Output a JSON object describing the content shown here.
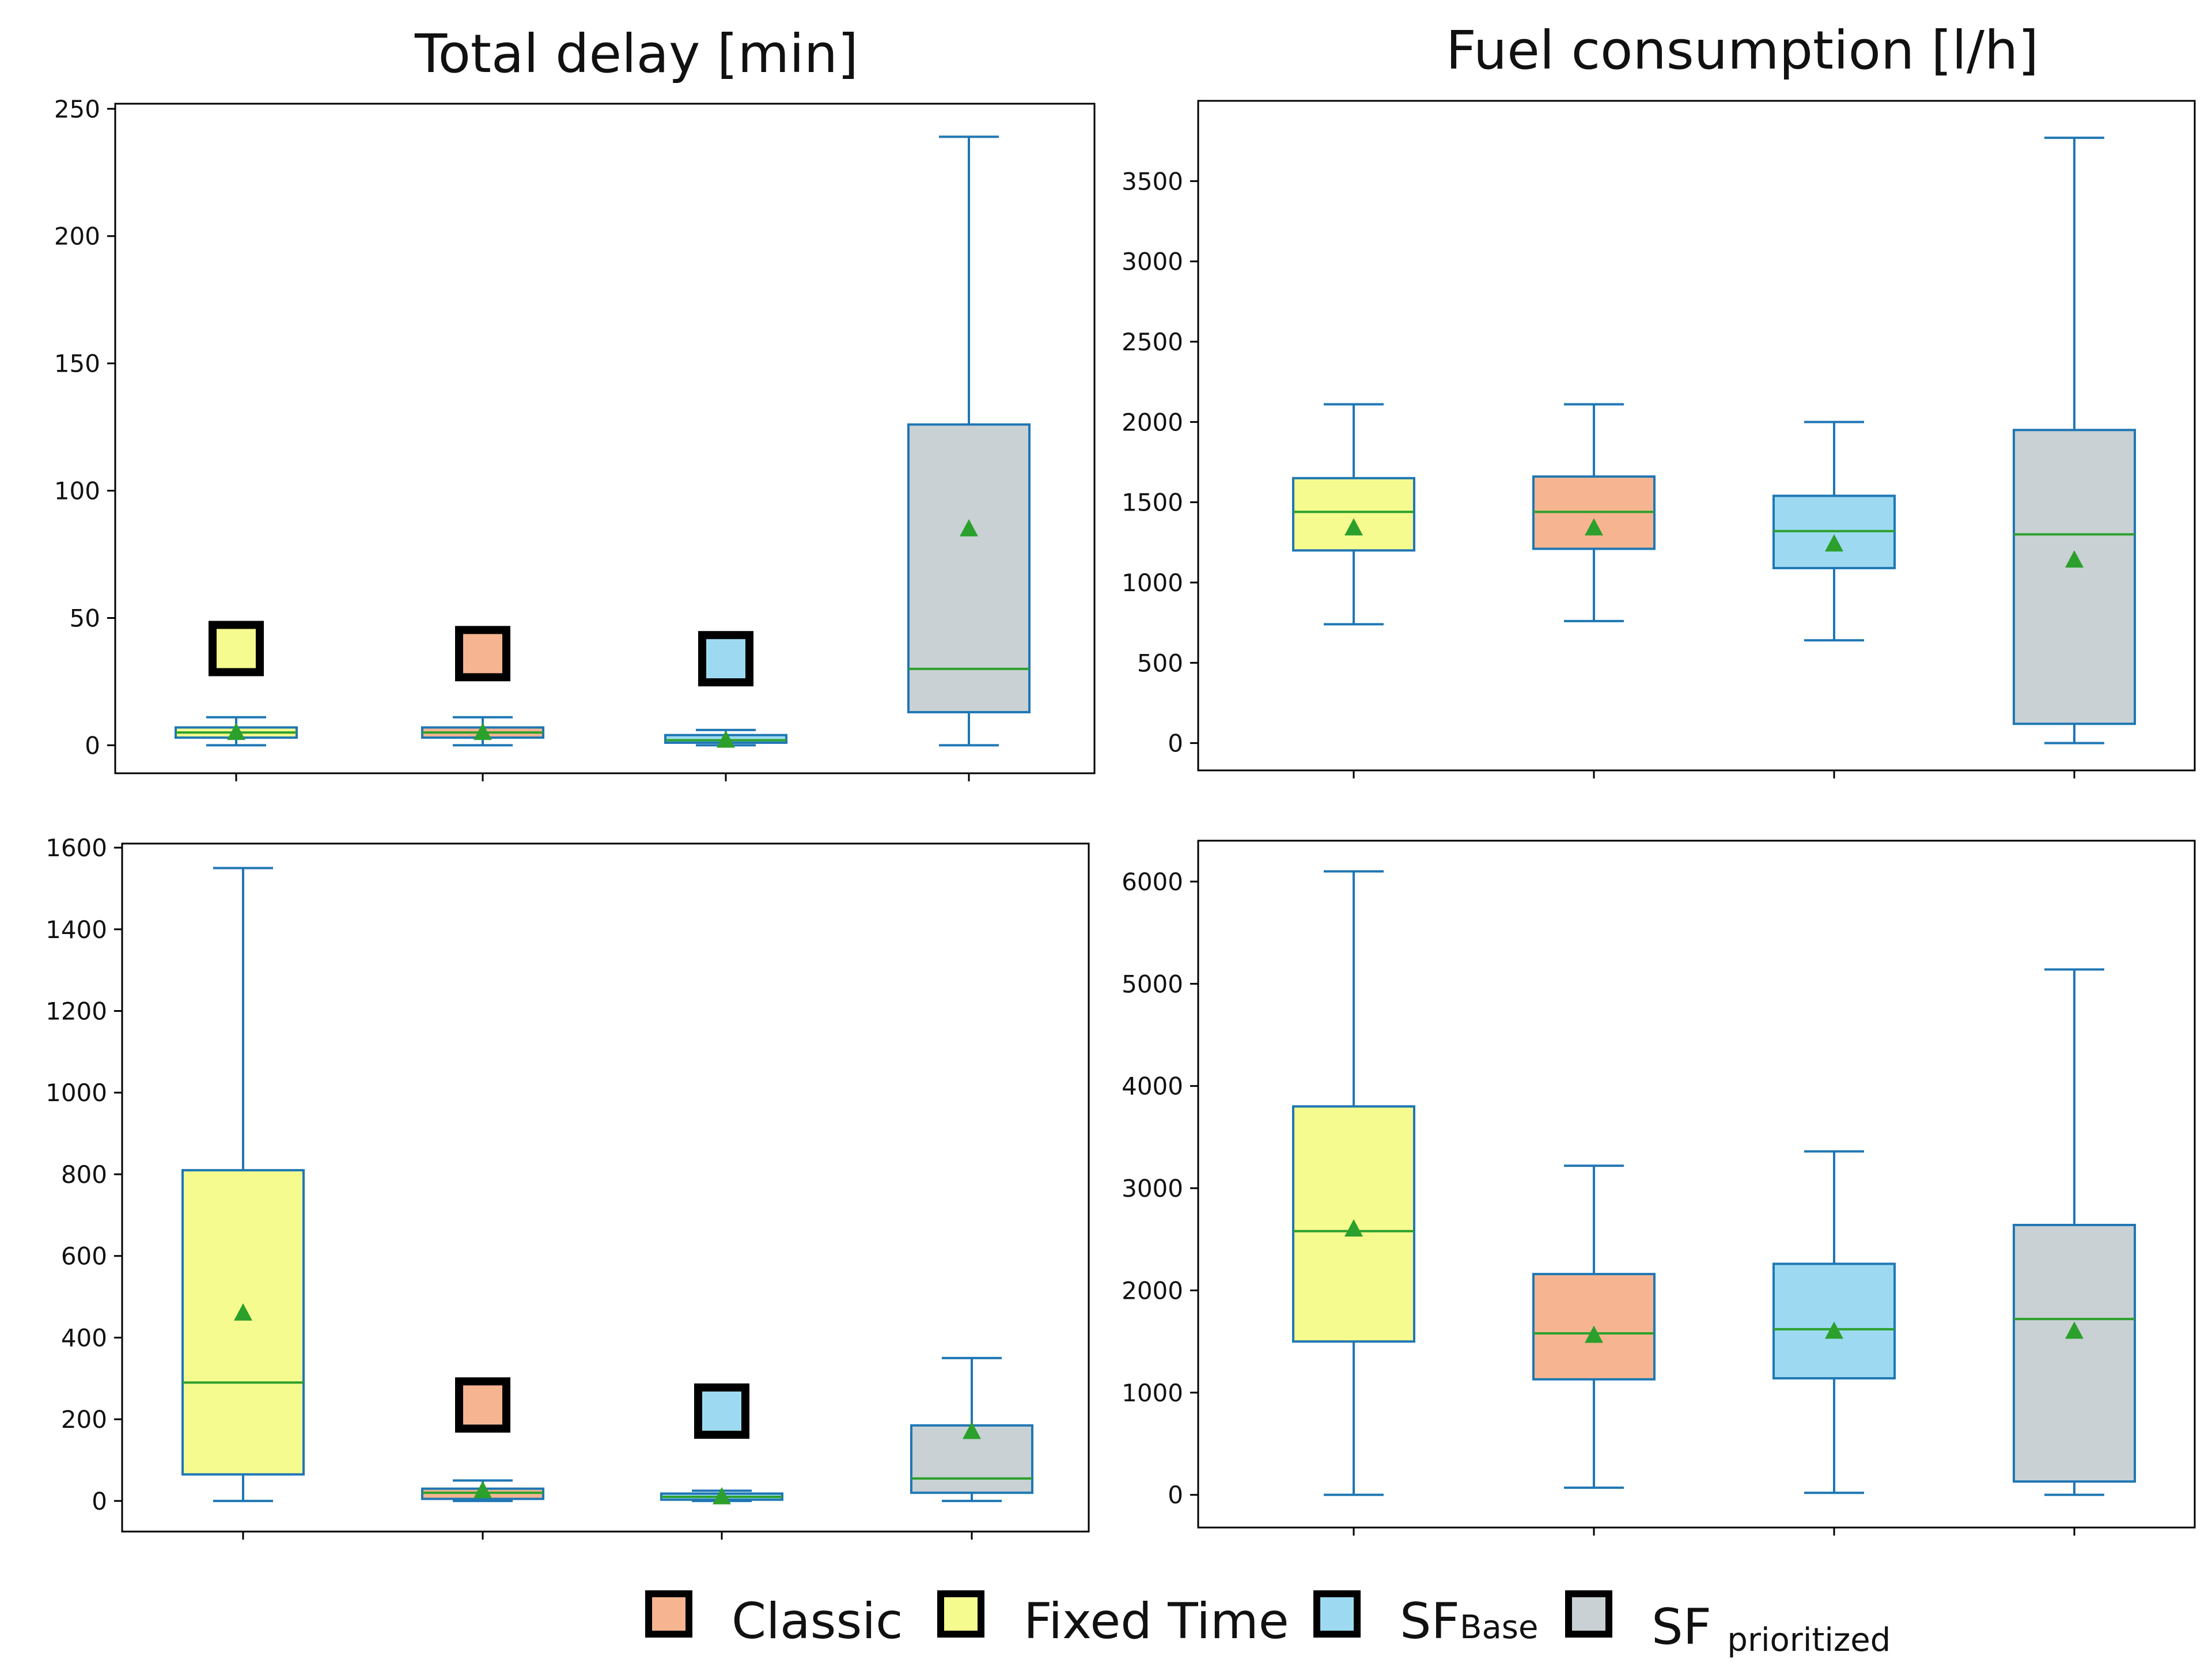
{
  "column_titles": {
    "left": "Total delay [min]",
    "right": "Fuel consumption [l/h]"
  },
  "colors": {
    "Fixed Time": "#f5fb8f",
    "Classic": "#f6b590",
    "SFBase": "#9ddaf1",
    "SF prioritized": "#c9d1d4",
    "box_edge": "#1f77b4",
    "median": "#2ca02c",
    "mean": "#2ca02c"
  },
  "legend": {
    "items": [
      {
        "label": "Classic",
        "sub": "",
        "color_key": "Classic"
      },
      {
        "label": "Fixed Time",
        "sub": "",
        "color_key": "Fixed Time"
      },
      {
        "label": "SF",
        "sub": "Base",
        "color_key": "SFBase"
      },
      {
        "label": "SF ",
        "sub": "prioritized",
        "color_key": "SF prioritized"
      }
    ]
  },
  "chart_data": [
    {
      "type": "box",
      "title": "Total delay [min]",
      "ylim": [
        -11,
        252
      ],
      "yticks": [
        0,
        50,
        100,
        150,
        200,
        250
      ],
      "boxes": [
        {
          "series": "Fixed Time",
          "whislo": 0,
          "q1": 3,
          "median": 5,
          "q3": 7,
          "whishi": 11,
          "mean": 5,
          "marker": true,
          "marker_y": 38
        },
        {
          "series": "Classic",
          "whislo": 0,
          "q1": 3,
          "median": 5,
          "q3": 7,
          "whishi": 11,
          "mean": 5,
          "marker": true,
          "marker_y": 36
        },
        {
          "series": "SFBase",
          "whislo": 0,
          "q1": 1,
          "median": 2,
          "q3": 4,
          "whishi": 6,
          "mean": 2,
          "marker": true,
          "marker_y": 34
        },
        {
          "series": "SF prioritized",
          "whislo": 0,
          "q1": 13,
          "median": 30,
          "q3": 126,
          "whishi": 239,
          "mean": 85,
          "marker": false
        }
      ]
    },
    {
      "type": "box",
      "title": "Fuel consumption [l/h]",
      "ylim": [
        -170,
        4000
      ],
      "yticks": [
        0,
        500,
        1000,
        1500,
        2000,
        2500,
        3000,
        3500
      ],
      "boxes": [
        {
          "series": "Fixed Time",
          "whislo": 740,
          "q1": 1200,
          "median": 1440,
          "q3": 1650,
          "whishi": 2110,
          "mean": 1340,
          "marker": false
        },
        {
          "series": "Classic",
          "whislo": 760,
          "q1": 1210,
          "median": 1440,
          "q3": 1660,
          "whishi": 2110,
          "mean": 1340,
          "marker": false
        },
        {
          "series": "SFBase",
          "whislo": 640,
          "q1": 1090,
          "median": 1320,
          "q3": 1540,
          "whishi": 2000,
          "mean": 1240,
          "marker": false
        },
        {
          "series": "SF prioritized",
          "whislo": 0,
          "q1": 120,
          "median": 1300,
          "q3": 1950,
          "whishi": 3770,
          "mean": 1140,
          "marker": false
        }
      ]
    },
    {
      "type": "box",
      "title": "",
      "ylim": [
        -75,
        1610
      ],
      "yticks": [
        0,
        200,
        400,
        600,
        800,
        1000,
        1200,
        1400,
        1600
      ],
      "boxes": [
        {
          "series": "Fixed Time",
          "whislo": 0,
          "q1": 65,
          "median": 290,
          "q3": 810,
          "whishi": 1550,
          "mean": 460,
          "marker": false
        },
        {
          "series": "Classic",
          "whislo": 0,
          "q1": 5,
          "median": 20,
          "q3": 30,
          "whishi": 50,
          "mean": 25,
          "marker": true,
          "marker_y": 235
        },
        {
          "series": "SFBase",
          "whislo": 0,
          "q1": 3,
          "median": 10,
          "q3": 18,
          "whishi": 25,
          "mean": 10,
          "marker": true,
          "marker_y": 220
        },
        {
          "series": "SF prioritized",
          "whislo": 0,
          "q1": 20,
          "median": 55,
          "q3": 185,
          "whishi": 350,
          "mean": 170,
          "marker": false
        }
      ]
    },
    {
      "type": "box",
      "title": "",
      "ylim": [
        -320,
        6400
      ],
      "yticks": [
        0,
        1000,
        2000,
        3000,
        4000,
        5000,
        6000
      ],
      "boxes": [
        {
          "series": "Fixed Time",
          "whislo": 0,
          "q1": 1500,
          "median": 2580,
          "q3": 3800,
          "whishi": 6100,
          "mean": 2600,
          "marker": false
        },
        {
          "series": "Classic",
          "whislo": 70,
          "q1": 1130,
          "median": 1580,
          "q3": 2160,
          "whishi": 3220,
          "mean": 1560,
          "marker": false
        },
        {
          "series": "SFBase",
          "whislo": 20,
          "q1": 1140,
          "median": 1620,
          "q3": 2260,
          "whishi": 3360,
          "mean": 1600,
          "marker": false
        },
        {
          "series": "SF prioritized",
          "whislo": 0,
          "q1": 130,
          "median": 1720,
          "q3": 2640,
          "whishi": 5140,
          "mean": 1600,
          "marker": false
        }
      ]
    }
  ]
}
